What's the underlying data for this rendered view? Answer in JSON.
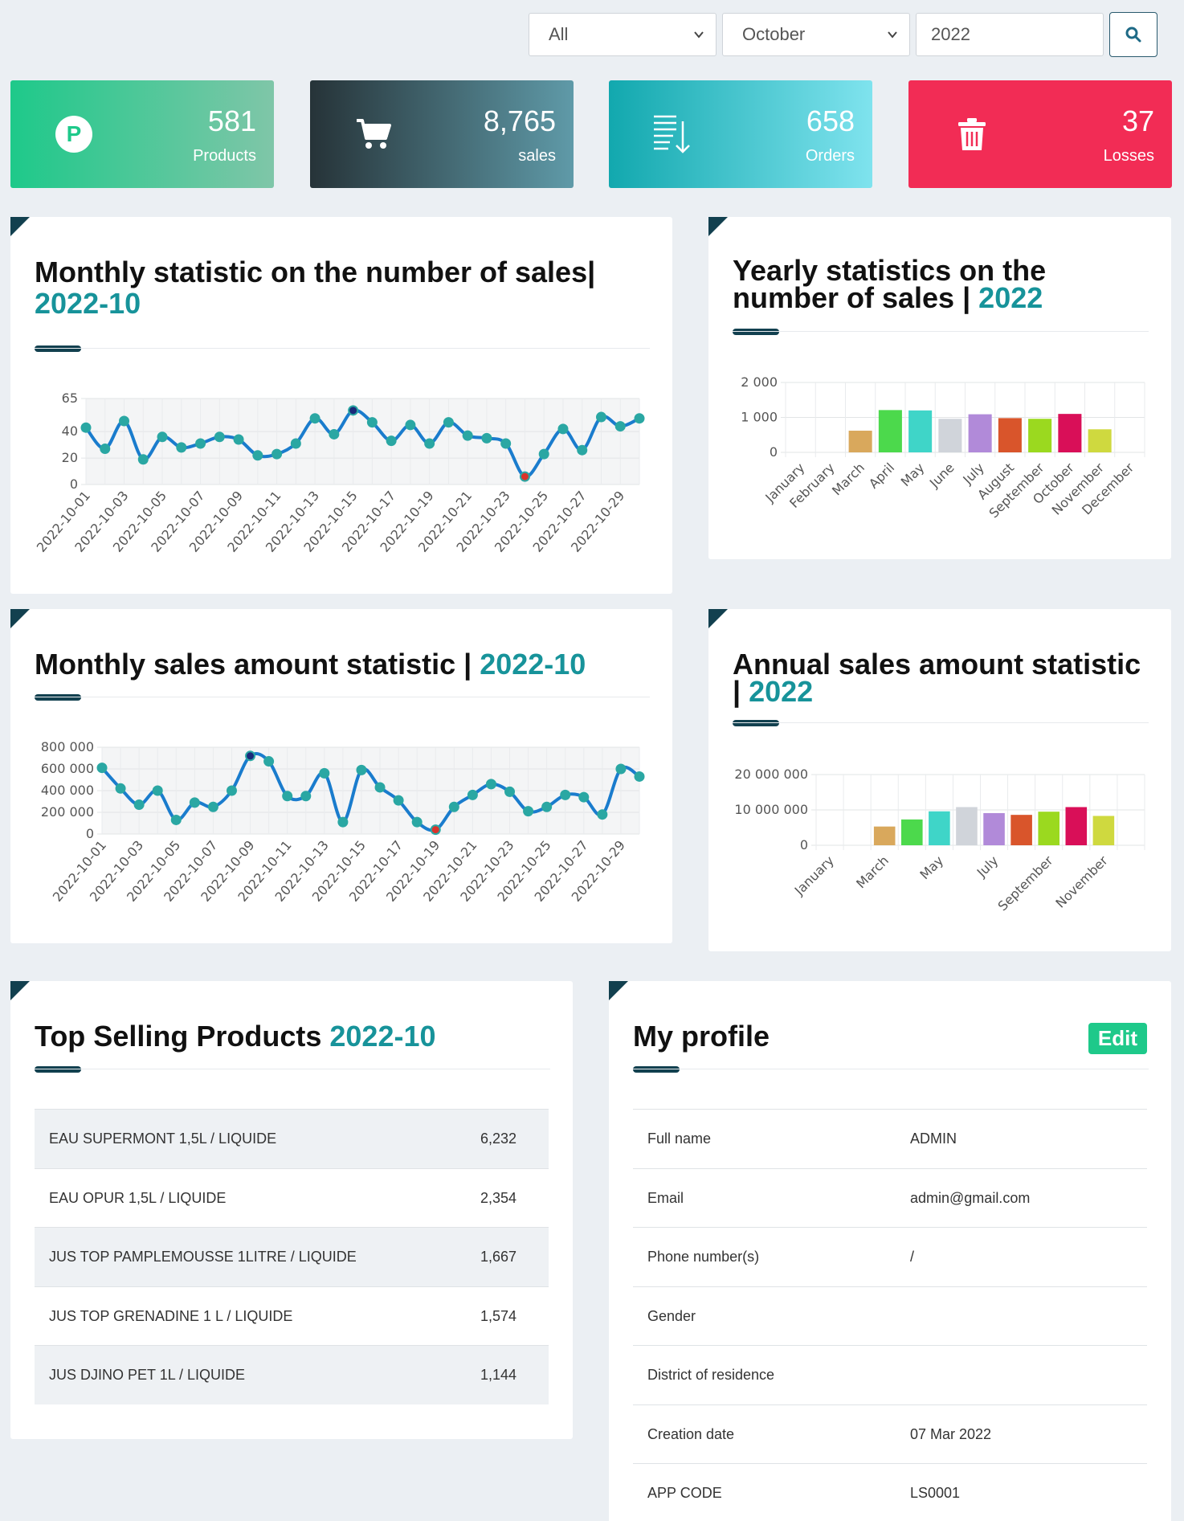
{
  "filters": {
    "category": "All",
    "month": "October",
    "year": "2022"
  },
  "stats": [
    {
      "value": "581",
      "label": "Products",
      "icon": "parking-icon"
    },
    {
      "value": "8,765",
      "label": "sales",
      "icon": "cart-icon"
    },
    {
      "value": "658",
      "label": "Orders",
      "icon": "list-sort-icon"
    },
    {
      "value": "37",
      "label": "Losses",
      "icon": "trash-icon"
    }
  ],
  "panels": {
    "monthly_sales": {
      "title": "Monthly statistic on the number of sales|",
      "period": "2022-10"
    },
    "yearly_sales": {
      "title": "Yearly statistics on the number of sales |",
      "period": "2022"
    },
    "monthly_amount": {
      "title": "Monthly sales amount statistic |",
      "period": "2022-10"
    },
    "annual_amount": {
      "title": "Annual sales amount statistic |",
      "period": "2022"
    },
    "top_products": {
      "title": "Top Selling Products",
      "period": "2022-10"
    },
    "profile": {
      "title": "My profile",
      "edit_label": "Edit"
    }
  },
  "colors": {
    "line": "#1a7ccd",
    "point": "#2aa7a3",
    "max_point": "#1a2a7a",
    "min_point": "#d9342b",
    "accent": "#17939a"
  },
  "chart_data": [
    {
      "type": "line",
      "title": "Monthly statistic on the number of sales| 2022-10",
      "x": [
        "2022-10-01",
        "2022-10-02",
        "2022-10-03",
        "2022-10-04",
        "2022-10-05",
        "2022-10-06",
        "2022-10-07",
        "2022-10-08",
        "2022-10-09",
        "2022-10-10",
        "2022-10-11",
        "2022-10-12",
        "2022-10-13",
        "2022-10-14",
        "2022-10-15",
        "2022-10-16",
        "2022-10-17",
        "2022-10-18",
        "2022-10-19",
        "2022-10-20",
        "2022-10-21",
        "2022-10-22",
        "2022-10-23",
        "2022-10-24",
        "2022-10-25",
        "2022-10-26",
        "2022-10-27",
        "2022-10-28",
        "2022-10-29",
        "2022-10-30"
      ],
      "x_tick_labels": [
        "2022-10-01",
        "2022-10-03",
        "2022-10-05",
        "2022-10-07",
        "2022-10-09",
        "2022-10-11",
        "2022-10-13",
        "2022-10-15",
        "2022-10-17",
        "2022-10-19",
        "2022-10-21",
        "2022-10-23",
        "2022-10-25",
        "2022-10-27",
        "2022-10-29"
      ],
      "values": [
        43,
        27,
        48,
        19,
        36,
        28,
        31,
        36,
        34,
        22,
        23,
        31,
        50,
        38,
        56,
        47,
        33,
        45,
        31,
        47,
        37,
        35,
        31,
        6,
        23,
        42,
        26,
        51,
        44,
        50
      ],
      "y_ticks": [
        0,
        20,
        40,
        65
      ],
      "ylim": [
        0,
        65
      ],
      "grid": true
    },
    {
      "type": "bar",
      "title": "Yearly statistics on the number of sales | 2022",
      "categories": [
        "January",
        "February",
        "March",
        "April",
        "May",
        "June",
        "July",
        "August",
        "September",
        "October",
        "November",
        "December"
      ],
      "values": [
        0,
        0,
        620,
        1210,
        1200,
        960,
        1090,
        980,
        960,
        1100,
        660,
        0
      ],
      "colors": [
        "#cccccc",
        "#cccccc",
        "#d9a85c",
        "#4cd94c",
        "#3fd5c8",
        "#d0d4da",
        "#b18ad9",
        "#d9552b",
        "#9bd91f",
        "#d90f58",
        "#cfd93f",
        "#cccccc"
      ],
      "y_ticks": [
        "0",
        "1 000",
        "2 000"
      ],
      "ylim": [
        0,
        2000
      ],
      "grid": true
    },
    {
      "type": "line",
      "title": "Monthly sales amount statistic | 2022-10",
      "x": [
        "2022-10-01",
        "2022-10-02",
        "2022-10-03",
        "2022-10-04",
        "2022-10-05",
        "2022-10-06",
        "2022-10-07",
        "2022-10-08",
        "2022-10-09",
        "2022-10-10",
        "2022-10-11",
        "2022-10-12",
        "2022-10-13",
        "2022-10-14",
        "2022-10-15",
        "2022-10-16",
        "2022-10-17",
        "2022-10-18",
        "2022-10-19",
        "2022-10-20",
        "2022-10-21",
        "2022-10-22",
        "2022-10-23",
        "2022-10-24",
        "2022-10-25",
        "2022-10-26",
        "2022-10-27",
        "2022-10-28",
        "2022-10-29",
        "2022-10-30"
      ],
      "x_tick_labels": [
        "2022-10-01",
        "2022-10-03",
        "2022-10-05",
        "2022-10-07",
        "2022-10-09",
        "2022-10-11",
        "2022-10-13",
        "2022-10-15",
        "2022-10-17",
        "2022-10-19",
        "2022-10-21",
        "2022-10-23",
        "2022-10-25",
        "2022-10-27",
        "2022-10-29"
      ],
      "values": [
        610000,
        420000,
        270000,
        400000,
        130000,
        290000,
        250000,
        400000,
        720000,
        670000,
        350000,
        350000,
        560000,
        110000,
        590000,
        430000,
        310000,
        110000,
        40000,
        250000,
        360000,
        460000,
        390000,
        210000,
        250000,
        360000,
        340000,
        180000,
        600000,
        530000
      ],
      "y_ticks": [
        "0",
        "200 000",
        "400 000",
        "600 000",
        "800 000"
      ],
      "ylim": [
        0,
        800000
      ],
      "grid": true
    },
    {
      "type": "bar",
      "title": "Annual sales amount statistic | 2022",
      "categories": [
        "January",
        "February",
        "March",
        "April",
        "May",
        "June",
        "July",
        "August",
        "September",
        "October",
        "November",
        "December"
      ],
      "x_tick_labels": [
        "January",
        "March",
        "May",
        "July",
        "September",
        "November"
      ],
      "values": [
        0,
        0,
        5300000,
        7300000,
        9600000,
        10800000,
        9100000,
        8600000,
        9500000,
        10800000,
        8300000,
        0
      ],
      "colors": [
        "#cccccc",
        "#cccccc",
        "#d9a85c",
        "#4cd94c",
        "#3fd5c8",
        "#d0d4da",
        "#b18ad9",
        "#d9552b",
        "#9bd91f",
        "#d90f58",
        "#cfd93f",
        "#cccccc"
      ],
      "y_ticks": [
        "0",
        "10 000 000",
        "20 000 000"
      ],
      "ylim": [
        0,
        20000000
      ],
      "grid": true
    }
  ],
  "top_products": [
    {
      "name": "EAU SUPERMONT 1,5L / LIQUIDE",
      "qty": "6,232"
    },
    {
      "name": "EAU OPUR 1,5L / LIQUIDE",
      "qty": "2,354"
    },
    {
      "name": "JUS TOP PAMPLEMOUSSE 1LITRE / LIQUIDE",
      "qty": "1,667"
    },
    {
      "name": "JUS TOP GRENADINE 1 L / LIQUIDE",
      "qty": "1,574"
    },
    {
      "name": "JUS DJINO PET 1L / LIQUIDE",
      "qty": "1,144"
    }
  ],
  "profile": [
    {
      "key": "Full name",
      "value": "ADMIN"
    },
    {
      "key": "Email",
      "value": "admin@gmail.com"
    },
    {
      "key": "Phone number(s)",
      "value": "/"
    },
    {
      "key": "Gender",
      "value": ""
    },
    {
      "key": "District of residence",
      "value": ""
    },
    {
      "key": "Creation date",
      "value": "07 Mar 2022"
    },
    {
      "key": "APP CODE",
      "value": "LS0001"
    }
  ]
}
